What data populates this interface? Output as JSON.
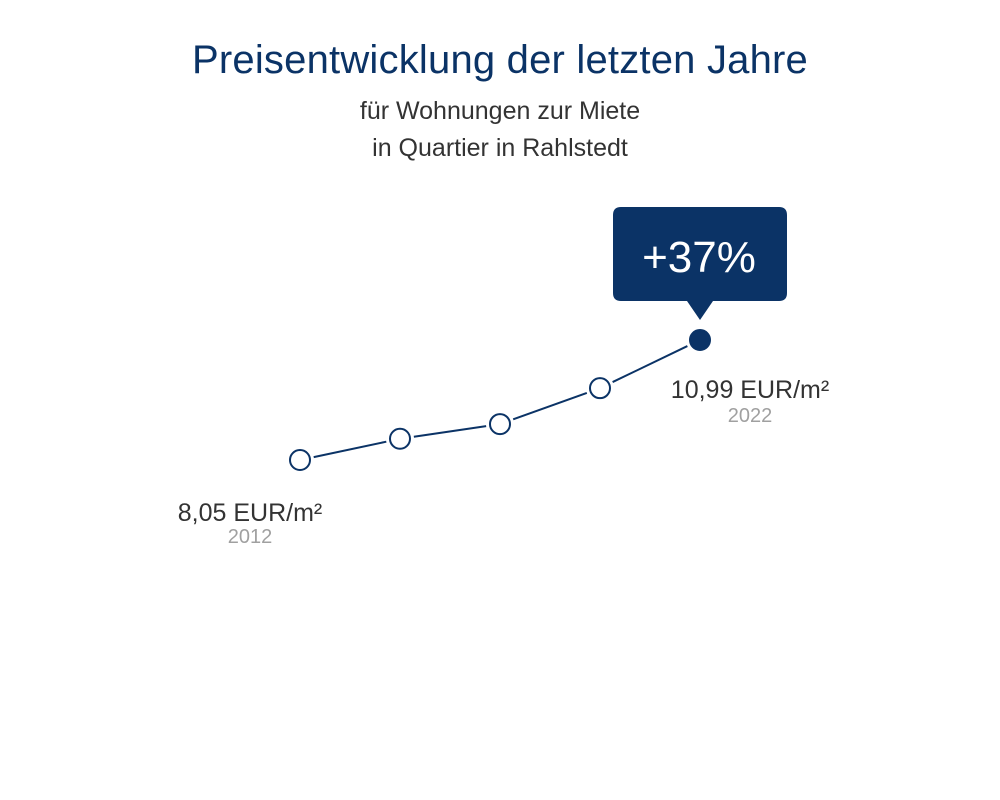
{
  "title": "Preisentwicklung der letzten Jahre",
  "subtitle_line1": "für Wohnungen zur Miete",
  "subtitle_line2": "in Quartier in Rahlstedt",
  "colors": {
    "accent": "#0b3366",
    "text": "#333333",
    "muted": "#a0a0a0"
  },
  "chart_data": {
    "type": "line",
    "x": [
      "2012",
      "",
      "",
      "",
      "2022"
    ],
    "values": [
      8.05,
      8.57,
      8.93,
      9.81,
      10.99
    ],
    "unit": "EUR/m²",
    "start_label": {
      "value": "8,05 EUR/m²",
      "year": "2012"
    },
    "end_label": {
      "value": "10,99 EUR/m²",
      "year": "2022"
    },
    "change_badge": "+37%",
    "ylim": [
      7.0,
      11.5
    ],
    "grid": false
  }
}
